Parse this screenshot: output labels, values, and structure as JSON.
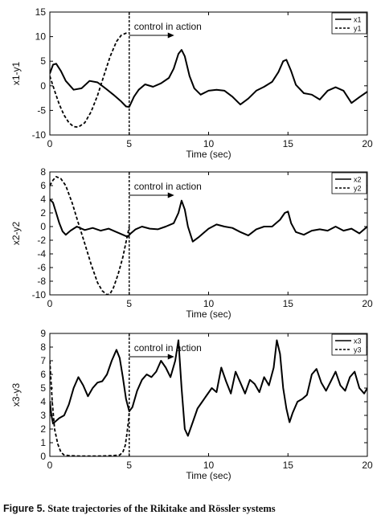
{
  "figure_caption": {
    "label": "Figure 5.",
    "text": "State trajectories of the Rikitake and Rössler systems"
  },
  "chart_data": [
    {
      "type": "line",
      "xlabel": "Time (sec)",
      "ylabel": "x1-y1",
      "xlim": [
        0,
        20
      ],
      "ylim": [
        -10,
        15
      ],
      "xticks": [
        0,
        5,
        10,
        15,
        20
      ],
      "yticks": [
        -10,
        -5,
        0,
        5,
        10,
        15
      ],
      "grid": false,
      "legend": "top-right",
      "annotation": {
        "text": "control in action",
        "x": 5
      },
      "series": [
        {
          "name": "x1",
          "style": "solid",
          "x": [
            0,
            0.2,
            0.4,
            0.7,
            1.0,
            1.5,
            2.0,
            2.5,
            3.0,
            3.5,
            4.0,
            4.5,
            4.8,
            5.0,
            5.3,
            5.6,
            6.0,
            6.5,
            7.0,
            7.5,
            7.8,
            8.1,
            8.3,
            8.5,
            8.8,
            9.1,
            9.5,
            10.0,
            10.5,
            11.0,
            11.5,
            12.0,
            12.5,
            13.0,
            13.5,
            14.0,
            14.4,
            14.7,
            14.9,
            15.2,
            15.5,
            16.0,
            16.5,
            17.0,
            17.5,
            18.0,
            18.5,
            19.0,
            19.5,
            20.0
          ],
          "y": [
            2.5,
            4.3,
            4.5,
            3.0,
            1.0,
            -0.8,
            -0.5,
            1.0,
            0.7,
            -0.5,
            -1.8,
            -3.2,
            -4.2,
            -4.3,
            -2.2,
            -0.8,
            0.3,
            -0.2,
            0.5,
            1.6,
            3.5,
            6.5,
            7.3,
            6.0,
            2.0,
            -0.5,
            -1.8,
            -1.0,
            -0.8,
            -1.0,
            -2.2,
            -3.8,
            -2.6,
            -1.0,
            -0.2,
            0.8,
            2.8,
            5.0,
            5.3,
            3.0,
            0.2,
            -1.5,
            -1.8,
            -2.8,
            -1.0,
            -0.3,
            -1.0,
            -3.5,
            -2.3,
            -1.2
          ]
        },
        {
          "name": "y1",
          "style": "dashed",
          "x": [
            0,
            0.3,
            0.6,
            0.9,
            1.2,
            1.5,
            1.8,
            2.2,
            2.6,
            3.0,
            3.4,
            3.8,
            4.2,
            4.5,
            4.8,
            5.0
          ],
          "y": [
            2.0,
            -1.0,
            -3.8,
            -6.0,
            -7.5,
            -8.3,
            -8.4,
            -7.5,
            -5.3,
            -2.0,
            2.0,
            6.0,
            9.0,
            10.3,
            10.7,
            10.8
          ]
        }
      ]
    },
    {
      "type": "line",
      "xlabel": "Time (sec)",
      "ylabel": "x2-y2",
      "xlim": [
        0,
        20
      ],
      "ylim": [
        -10,
        8
      ],
      "xticks": [
        0,
        5,
        10,
        15,
        20
      ],
      "yticks": [
        -10,
        -8,
        -6,
        -4,
        -2,
        0,
        2,
        4,
        6,
        8
      ],
      "grid": false,
      "legend": "top-right",
      "annotation": {
        "text": "control in action",
        "x": 5
      },
      "series": [
        {
          "name": "x2",
          "style": "solid",
          "x": [
            0,
            0.2,
            0.4,
            0.6,
            0.8,
            1.0,
            1.3,
            1.7,
            2.2,
            2.7,
            3.2,
            3.7,
            4.2,
            4.6,
            4.9,
            5.1,
            5.4,
            5.8,
            6.3,
            6.8,
            7.3,
            7.8,
            8.1,
            8.3,
            8.5,
            8.7,
            9.0,
            9.4,
            10.0,
            10.5,
            11.0,
            11.5,
            12.0,
            12.5,
            13.0,
            13.5,
            14.0,
            14.5,
            14.8,
            15.0,
            15.2,
            15.5,
            16.0,
            16.5,
            17.0,
            17.5,
            18.0,
            18.5,
            19.0,
            19.5,
            20.0
          ],
          "y": [
            4.0,
            3.5,
            2.0,
            0.5,
            -0.7,
            -1.2,
            -0.6,
            0.0,
            -0.5,
            -0.2,
            -0.6,
            -0.3,
            -0.8,
            -1.2,
            -1.5,
            -1.0,
            -0.4,
            0.0,
            -0.3,
            -0.4,
            0.0,
            0.5,
            2.0,
            3.8,
            2.5,
            0.0,
            -2.2,
            -1.5,
            -0.3,
            0.3,
            0.0,
            -0.2,
            -0.8,
            -1.3,
            -0.4,
            0.0,
            0.0,
            1.0,
            2.0,
            2.2,
            0.5,
            -0.8,
            -1.2,
            -0.6,
            -0.4,
            -0.6,
            0.0,
            -0.6,
            -0.3,
            -1.0,
            0.0
          ]
        },
        {
          "name": "y2",
          "style": "dashed",
          "x": [
            0,
            0.2,
            0.4,
            0.7,
            1.0,
            1.4,
            1.8,
            2.2,
            2.6,
            3.0,
            3.3,
            3.6,
            3.8,
            4.0,
            4.3,
            4.6,
            5.0
          ],
          "y": [
            6.0,
            6.8,
            7.3,
            7.0,
            6.0,
            3.5,
            0.5,
            -2.5,
            -5.5,
            -8.2,
            -9.4,
            -10.0,
            -9.8,
            -9.0,
            -7.0,
            -4.5,
            0.0
          ]
        }
      ]
    },
    {
      "type": "line",
      "xlabel": "Time (sec)",
      "ylabel": "x3-y3",
      "xlim": [
        0,
        20
      ],
      "ylim": [
        0,
        9
      ],
      "xticks": [
        0,
        5,
        10,
        15,
        20
      ],
      "yticks": [
        0,
        1,
        2,
        3,
        4,
        5,
        6,
        7,
        8,
        9
      ],
      "grid": false,
      "legend": "top-right",
      "annotation": {
        "text": "control in action",
        "x": 5
      },
      "series": [
        {
          "name": "x3",
          "style": "solid",
          "x": [
            0,
            0.1,
            0.2,
            0.4,
            0.6,
            0.9,
            1.2,
            1.5,
            1.8,
            2.1,
            2.4,
            2.7,
            3.0,
            3.3,
            3.6,
            3.9,
            4.2,
            4.4,
            4.6,
            4.8,
            5.0,
            5.2,
            5.5,
            5.8,
            6.1,
            6.4,
            6.7,
            7.0,
            7.3,
            7.6,
            7.9,
            8.1,
            8.3,
            8.5,
            8.7,
            9.0,
            9.3,
            9.6,
            9.9,
            10.2,
            10.5,
            10.8,
            11.1,
            11.4,
            11.7,
            12.0,
            12.3,
            12.6,
            12.9,
            13.2,
            13.5,
            13.8,
            14.1,
            14.3,
            14.5,
            14.7,
            14.9,
            15.1,
            15.3,
            15.6,
            15.9,
            16.2,
            16.5,
            16.8,
            17.1,
            17.4,
            17.7,
            18.0,
            18.3,
            18.6,
            18.9,
            19.2,
            19.5,
            19.8,
            20.0
          ],
          "y": [
            4.0,
            3.0,
            2.4,
            2.6,
            2.8,
            3.0,
            3.8,
            5.0,
            5.8,
            5.2,
            4.4,
            5.0,
            5.4,
            5.5,
            6.0,
            7.0,
            7.8,
            7.2,
            5.8,
            4.2,
            3.3,
            3.6,
            4.8,
            5.6,
            6.0,
            5.8,
            6.2,
            7.0,
            6.5,
            5.8,
            7.0,
            8.5,
            5.0,
            2.0,
            1.5,
            2.5,
            3.5,
            4.0,
            4.5,
            5.0,
            4.7,
            6.5,
            5.5,
            4.6,
            6.2,
            5.4,
            4.6,
            5.6,
            5.3,
            4.7,
            5.8,
            5.2,
            6.5,
            8.5,
            7.5,
            5.0,
            3.5,
            2.5,
            3.2,
            4.0,
            4.2,
            4.5,
            6.0,
            6.4,
            5.4,
            4.8,
            5.5,
            6.2,
            5.2,
            4.8,
            5.8,
            6.2,
            5.0,
            4.6,
            5.0
          ]
        },
        {
          "name": "y3",
          "style": "dashed",
          "x": [
            0,
            0.05,
            0.15,
            0.3,
            0.5,
            0.7,
            0.9,
            1.2,
            2.0,
            3.0,
            4.0,
            4.4,
            4.6,
            4.75,
            4.85,
            4.95,
            5.0
          ],
          "y": [
            7.0,
            6.0,
            4.0,
            2.0,
            0.9,
            0.3,
            0.1,
            0.05,
            0.02,
            0.02,
            0.05,
            0.1,
            0.3,
            0.8,
            1.6,
            2.6,
            3.2
          ]
        }
      ]
    }
  ]
}
